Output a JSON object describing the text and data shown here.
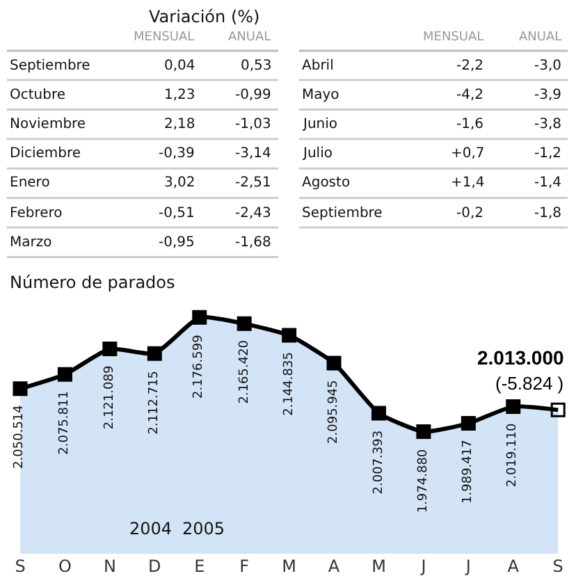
{
  "chart_data": [
    {
      "type": "other",
      "title": "Variación (%)",
      "categories": [
        "MENSUAL",
        "ANUAL"
      ],
      "y_categories": [
        "Septiembre",
        "Octubre",
        "Noviembre",
        "Diciembre",
        "Enero",
        "Febrero",
        "Marzo"
      ],
      "cell_labels": [
        [
          "0,04",
          "0,53"
        ],
        [
          "1,23",
          "-0,99"
        ],
        [
          "2,18",
          "-1,03"
        ],
        [
          "-0,39",
          "-3,14"
        ],
        [
          "3,02",
          "-2,51"
        ],
        [
          "-0,51",
          "-2,43"
        ],
        [
          "-0,95",
          "-1,68"
        ]
      ]
    },
    {
      "type": "other",
      "categories": [
        "MENSUAL",
        "ANUAL"
      ],
      "y_categories": [
        "Abril",
        "Mayo",
        "Junio",
        "Julio",
        "Agosto",
        "Septiembre"
      ],
      "cell_labels": [
        [
          "-2,2",
          "-3,0"
        ],
        [
          "-4,2",
          "-3,9"
        ],
        [
          "-1,6",
          "-3,8"
        ],
        [
          "+0,7",
          "-1,2"
        ],
        [
          "+1,4",
          "-1,4"
        ],
        [
          "-0,2",
          "-1,8"
        ]
      ]
    },
    {
      "type": "area",
      "title": "Número de parados",
      "categories": [
        "S",
        "O",
        "N",
        "D",
        "E",
        "F",
        "M",
        "A",
        "M",
        "J",
        "J",
        "A",
        "S"
      ],
      "series": [
        {
          "color": "#d4e4f7",
          "values": [
            2050514,
            2075811,
            2121089,
            2112715,
            2176599,
            2165420,
            2144835,
            2095945,
            2007393,
            1974880,
            1989417,
            2019110,
            2013000
          ],
          "value_labels": [
            "2.050.514",
            "2.075.811",
            "2.121.089",
            "2.112.715",
            "2.176.599",
            "2.165.420",
            "2.144.835",
            "2.095.945",
            "2.007.393",
            "1.974.880",
            "1.989.417",
            "2.019.110",
            "2.013.000"
          ]
        }
      ],
      "marker": "square",
      "annotations": [
        "(-5.824 )",
        "2004",
        "2005"
      ]
    }
  ]
}
